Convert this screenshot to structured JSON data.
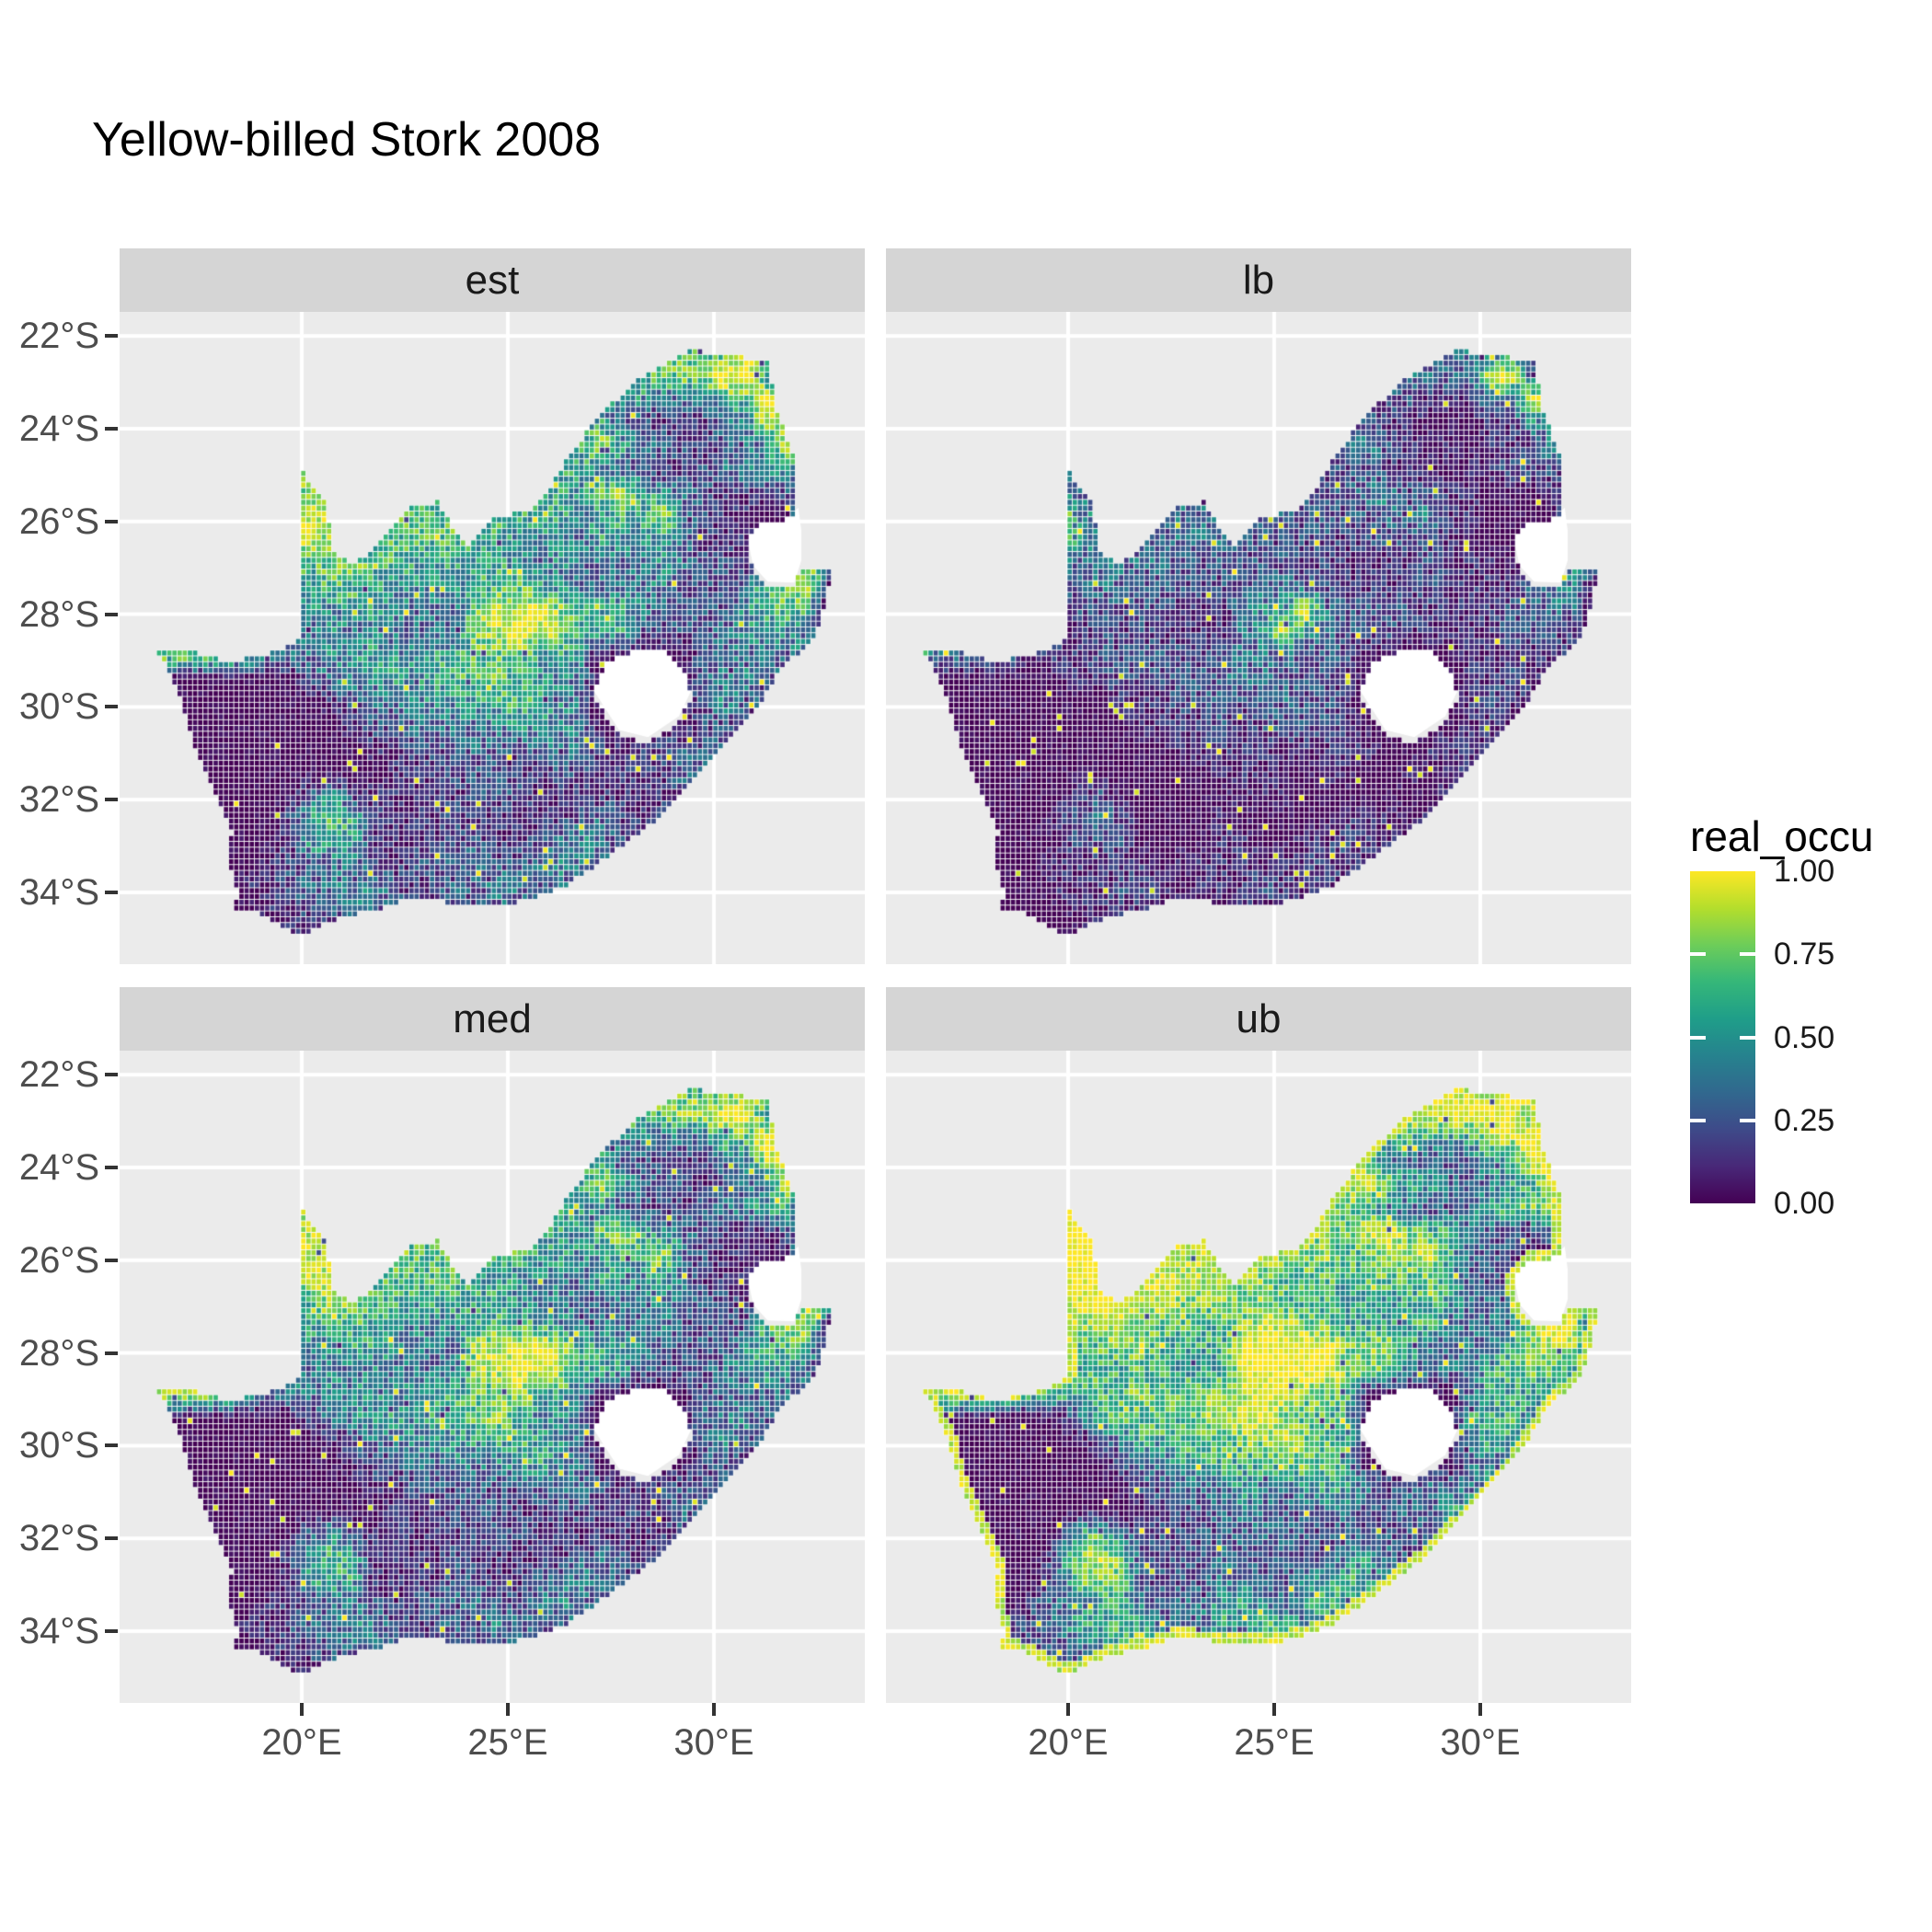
{
  "title": "Yellow-billed Stork 2008",
  "legend": {
    "title": "real_occu",
    "tick_labels": [
      "1.00",
      "0.75",
      "0.50",
      "0.25",
      "0.00"
    ],
    "tick_values": [
      1.0,
      0.75,
      0.5,
      0.25,
      0.0
    ]
  },
  "axes": {
    "x_tick_labels": [
      "20°E",
      "25°E",
      "30°E"
    ],
    "x_tick_lons": [
      20,
      25,
      30
    ],
    "y_tick_labels": [
      "22°S",
      "24°S",
      "26°S",
      "28°S",
      "30°S",
      "32°S",
      "34°S"
    ],
    "y_tick_lats": [
      22,
      24,
      26,
      28,
      30,
      32,
      34
    ]
  },
  "colors": {
    "panel_bg": "#ebebeb",
    "strip_bg": "#d5d5d5",
    "grid_line": "#ffffff",
    "axis_text": "#4d4d4d",
    "tick_mark": "#333333",
    "hole_fill": "#ffffff",
    "viridis": [
      "#440154",
      "#482878",
      "#3e4a89",
      "#31688e",
      "#26828e",
      "#1f9e89",
      "#35b779",
      "#6dcd59",
      "#b4de2c",
      "#fde725"
    ]
  },
  "chart_data": {
    "type": "heatmap",
    "title": "Yellow-billed Stork 2008",
    "region": "South Africa",
    "variable": "real_occu",
    "value_range": [
      0,
      1
    ],
    "legend_position": "right",
    "grid": "major white lines at 20/25/30°E and 22-34°S every 2°",
    "facets": [
      {
        "label": "est",
        "value_map": "0123456789"
      },
      {
        "label": "lb",
        "value_map": "0011223349"
      },
      {
        "label": "med",
        "value_map": "0123456889"
      },
      {
        "label": "ub",
        "value_map": "0235678999"
      }
    ],
    "base_grid": {
      "comment": "coarse 0.5-degree occupancy field (digits 0-9 = value*9); facet value = value_map[digit]/9",
      "lon_start": 15.75,
      "lat_start": -21.75,
      "cell_deg": 0.5,
      "rows": [
        "0000000000000000000000007777777770000",
        "0000000000000000000000667776668830000",
        "0000000000000000000005446667799540000",
        "0000000000000000000032244433366994000",
        "0000000000000000000025552211133889000",
        "0000000066000000000434585332123388000",
        "0000000077700000004455542211234553000",
        "0000000077886666666455468543211123000",
        "0000000098887766666655446583211008800",
        "0000000098776666655444354453111008700",
        "0000000066776655555434333343221008800",
        "0000000055665444456654333342222678000",
        "0000000044455433378897555422224566000",
        "0000000033434333378988555222234543000",
        "0977775343445445566755400000233334000",
        "0000000002344545667544300000334230000",
        "0000000000123344455654300000243200000",
        "0000000000012233434454300000221000000",
        "0000000000001122232233321122230000000",
        "0000000000000111222112211213300000000",
        "0000000003411111122211111112000000000",
        "0000000025651111211111232120000000000",
        "0000000015551111221123432200000000000",
        "0000000122332122332234323000000000000",
        "0000001123344212324323230000000000000",
        "0000000112233221122322000000000000000",
        "0000000011221100000000000000000000000",
        "0000000000000000000000000000000000000"
      ]
    },
    "boundary_lonlat": [
      [
        16.45,
        -28.58
      ],
      [
        17.05,
        -29.65
      ],
      [
        17.35,
        -30.6
      ],
      [
        17.85,
        -31.6
      ],
      [
        18.3,
        -32.55
      ],
      [
        18.2,
        -33.15
      ],
      [
        18.45,
        -33.9
      ],
      [
        18.35,
        -34.2
      ],
      [
        19.0,
        -34.35
      ],
      [
        20.0,
        -34.82
      ],
      [
        20.9,
        -34.42
      ],
      [
        22.15,
        -34.18
      ],
      [
        22.6,
        -34.02
      ],
      [
        23.6,
        -34.1
      ],
      [
        24.8,
        -34.18
      ],
      [
        25.65,
        -33.98
      ],
      [
        26.45,
        -33.72
      ],
      [
        27.45,
        -33.08
      ],
      [
        28.6,
        -32.3
      ],
      [
        29.7,
        -31.3
      ],
      [
        30.8,
        -30.2
      ],
      [
        31.05,
        -29.87
      ],
      [
        31.75,
        -28.9
      ],
      [
        32.3,
        -28.55
      ],
      [
        32.55,
        -28.15
      ],
      [
        32.9,
        -26.86
      ],
      [
        32.12,
        -26.84
      ],
      [
        31.95,
        -27.32
      ],
      [
        31.3,
        -27.3
      ],
      [
        30.95,
        -26.95
      ],
      [
        30.8,
        -26.3
      ],
      [
        31.1,
        -25.88
      ],
      [
        31.9,
        -25.83
      ],
      [
        32.0,
        -25.6
      ],
      [
        31.98,
        -24.5
      ],
      [
        31.55,
        -23.6
      ],
      [
        31.3,
        -22.4
      ],
      [
        30.4,
        -22.3
      ],
      [
        29.4,
        -22.16
      ],
      [
        28.2,
        -22.8
      ],
      [
        27.2,
        -23.6
      ],
      [
        26.4,
        -24.6
      ],
      [
        25.85,
        -25.35
      ],
      [
        25.6,
        -25.6
      ],
      [
        24.6,
        -25.85
      ],
      [
        24.0,
        -26.45
      ],
      [
        23.3,
        -25.45
      ],
      [
        22.6,
        -25.6
      ],
      [
        21.9,
        -26.35
      ],
      [
        21.2,
        -26.85
      ],
      [
        20.75,
        -26.45
      ],
      [
        20.6,
        -25.45
      ],
      [
        19.98,
        -24.77
      ],
      [
        19.98,
        -28.43
      ],
      [
        19.2,
        -28.74
      ],
      [
        18.2,
        -28.9
      ],
      [
        17.4,
        -28.7
      ]
    ],
    "lesotho_hole": [
      [
        27.05,
        -29.6
      ],
      [
        27.4,
        -28.95
      ],
      [
        28.1,
        -28.65
      ],
      [
        28.7,
        -28.6
      ],
      [
        29.25,
        -29.05
      ],
      [
        29.45,
        -29.65
      ],
      [
        29.15,
        -30.2
      ],
      [
        28.4,
        -30.65
      ],
      [
        27.7,
        -30.5
      ]
    ],
    "eswatini_hole": [
      [
        30.8,
        -26.3
      ],
      [
        31.1,
        -25.88
      ],
      [
        31.9,
        -25.83
      ],
      [
        32.05,
        -25.7
      ],
      [
        32.12,
        -26.2
      ],
      [
        32.12,
        -26.84
      ],
      [
        31.95,
        -27.32
      ],
      [
        31.3,
        -27.3
      ],
      [
        30.95,
        -26.95
      ]
    ]
  }
}
